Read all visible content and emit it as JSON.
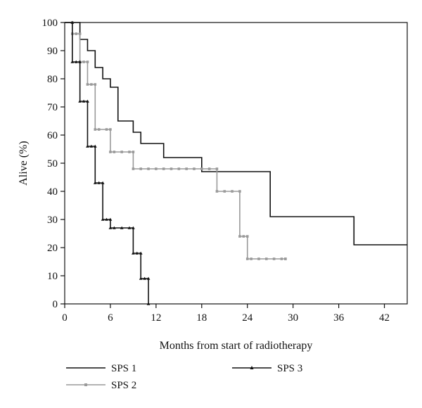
{
  "chart_data": {
    "type": "line",
    "subtype": "kaplan-meier step",
    "xlabel": "Months from start of radiotherapy",
    "ylabel": "Alive (%)",
    "xlim": [
      0,
      45
    ],
    "ylim": [
      0,
      100
    ],
    "xticks": [
      0,
      6,
      12,
      18,
      24,
      30,
      36,
      42
    ],
    "yticks": [
      0,
      10,
      20,
      30,
      40,
      50,
      60,
      70,
      80,
      90,
      100
    ],
    "grid": false,
    "legend_position": "bottom",
    "series": [
      {
        "name": "SPS 1",
        "color": "#111111",
        "marker": "none",
        "x": [
          0,
          2,
          3,
          4,
          5,
          6,
          7,
          9,
          10,
          13,
          18,
          27,
          38,
          45
        ],
        "y": [
          100,
          94,
          90,
          84,
          80,
          77,
          65,
          61,
          57,
          52,
          47,
          31,
          21,
          21
        ]
      },
      {
        "name": "SPS 2",
        "color": "#9a9a9a",
        "marker": "square",
        "x": [
          0,
          1,
          2,
          3,
          4,
          6,
          9,
          20,
          23,
          24,
          29
        ],
        "y": [
          100,
          96,
          86,
          78,
          62,
          54,
          48,
          40,
          24,
          16,
          16
        ],
        "censored_x": [
          1.5,
          2.5,
          3.5,
          4.5,
          5.5,
          6.5,
          7.5,
          8.5,
          10,
          11,
          12,
          13,
          14,
          15,
          16,
          17,
          18,
          19,
          21,
          22,
          23.5,
          24.5,
          25.5,
          26.5,
          27.5,
          28.5
        ]
      },
      {
        "name": "SPS 3",
        "color": "#111111",
        "marker": "triangle",
        "x": [
          0,
          1,
          2,
          3,
          4,
          5,
          6,
          9,
          10,
          11
        ],
        "y": [
          100,
          86,
          72,
          56,
          43,
          30,
          27,
          18,
          9,
          0
        ],
        "censored_x": [
          1.5,
          2.5,
          3.5,
          4.5,
          5.5,
          6.5,
          7.5,
          8.5,
          9.5,
          10.5
        ]
      }
    ]
  }
}
